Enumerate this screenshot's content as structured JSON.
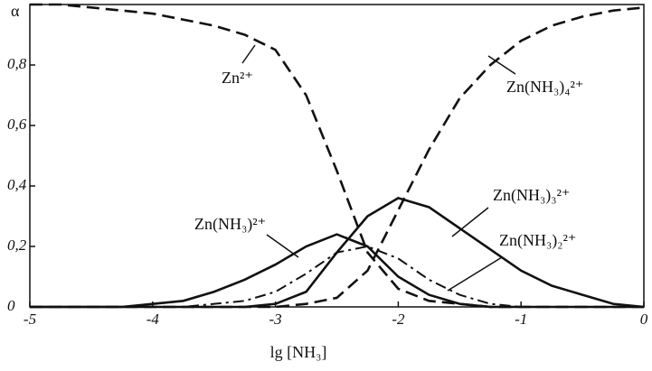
{
  "chart_data": {
    "type": "line",
    "y_label": "α",
    "x_label": "lg [NH₃]",
    "x": [
      -5,
      -4.75,
      -4.5,
      -4.25,
      -4,
      -3.75,
      -3.5,
      -3.25,
      -3,
      -2.75,
      -2.5,
      -2.25,
      -2,
      -1.75,
      -1.5,
      -1.25,
      -1,
      -0.75,
      -0.5,
      -0.25,
      0
    ],
    "series": [
      {
        "name": "Zn²⁺",
        "color": "#111111",
        "dash": "dashed",
        "values": [
          1,
          1,
          0.99,
          0.98,
          0.97,
          0.95,
          0.93,
          0.9,
          0.85,
          0.7,
          0.45,
          0.18,
          0.06,
          0.02,
          0.01,
          0,
          0,
          0,
          0,
          0,
          0
        ]
      },
      {
        "name": "Zn(NH₃)²⁺",
        "color": "#111111",
        "dash": "solid",
        "values": [
          0,
          0,
          0,
          0,
          0.01,
          0.02,
          0.05,
          0.09,
          0.14,
          0.2,
          0.24,
          0.2,
          0.1,
          0.04,
          0.01,
          0,
          0,
          0,
          0,
          0,
          0
        ]
      },
      {
        "name": "Zn(NH₃)₂²⁺",
        "color": "#111111",
        "dash": "dash-dot",
        "values": [
          0,
          0,
          0,
          0,
          0,
          0,
          0.01,
          0.02,
          0.05,
          0.11,
          0.18,
          0.2,
          0.16,
          0.09,
          0.04,
          0.01,
          0,
          0,
          0,
          0,
          0
        ]
      },
      {
        "name": "Zn(NH₃)₃²⁺",
        "color": "#111111",
        "dash": "solid",
        "values": [
          0,
          0,
          0,
          0,
          0,
          0,
          0,
          0,
          0.01,
          0.05,
          0.18,
          0.3,
          0.36,
          0.33,
          0.26,
          0.19,
          0.12,
          0.07,
          0.04,
          0.01,
          0
        ]
      },
      {
        "name": "Zn(NH₃)₄²⁺",
        "color": "#111111",
        "dash": "dashed",
        "values": [
          0,
          0,
          0,
          0,
          0,
          0,
          0,
          0,
          0,
          0.01,
          0.03,
          0.12,
          0.32,
          0.52,
          0.69,
          0.8,
          0.88,
          0.93,
          0.96,
          0.98,
          0.99
        ]
      }
    ],
    "xlim": [
      -5,
      0
    ],
    "ylim": [
      0,
      1
    ],
    "xticks": [
      -5,
      -4,
      -3,
      -2,
      -1,
      0
    ],
    "yticks": [
      {
        "value": 0,
        "label": "0"
      },
      {
        "value": 0.2,
        "label": "0,2"
      },
      {
        "value": 0.4,
        "label": "0,4"
      },
      {
        "value": 0.6,
        "label": "0,6"
      },
      {
        "value": 0.8,
        "label": "0,8"
      }
    ],
    "grid": false
  }
}
